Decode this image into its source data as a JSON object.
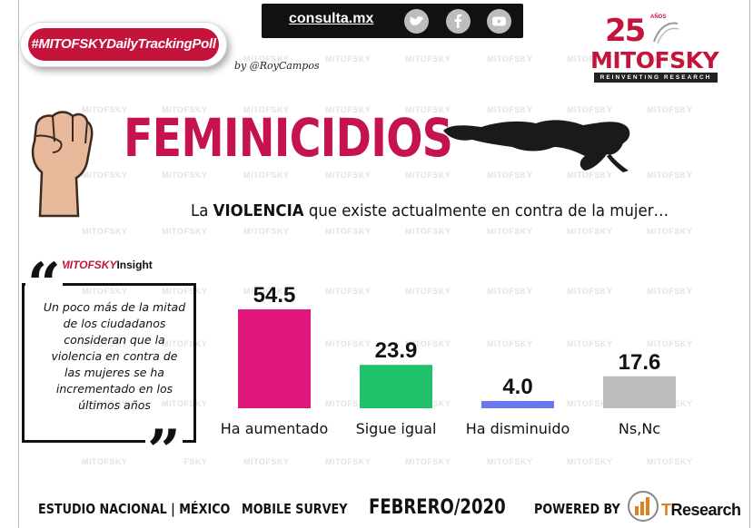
{
  "header": {
    "hashtag": "#MITOFSKYDailyTrackingPoll",
    "byline": "by @RoyCampos",
    "site": "consulta.mx",
    "social_icons": [
      "twitter-icon",
      "facebook-icon",
      "youtube-icon"
    ]
  },
  "logo": {
    "anniversary": "25",
    "anniversary_suffix": "AÑOS",
    "name": "MITOFSKY",
    "tagline": "REINVENTING RESEARCH"
  },
  "watermark": "MITOFSKY",
  "title": "FEMINICIDIOS",
  "question": {
    "pre": "La ",
    "emph": "VIOLENCIA",
    "post": " que existe actualmente en contra de la mujer…"
  },
  "insight": {
    "tag_prefix": "#",
    "tag_brand": "MITOFSKY",
    "tag_suffix": "Insight",
    "text": "Un poco más de la mitad de los ciudadanos consideran que la violencia en contra de las mujeres se ha incrementado en los últimos años"
  },
  "chart_data": {
    "type": "bar",
    "categories": [
      "Ha aumentado",
      "Sigue igual",
      "Ha disminuido",
      "Ns,Nc"
    ],
    "values": [
      54.5,
      23.9,
      4.0,
      17.6
    ],
    "value_labels": [
      "54.5",
      "23.9",
      "4.0",
      "17.6"
    ],
    "colors": [
      "#e0177a",
      "#1fc26a",
      "#6a78ee",
      "#bcbcbc"
    ],
    "title": "",
    "xlabel": "",
    "ylabel": "",
    "ylim": [
      0,
      60
    ],
    "grid": false,
    "legend": "none"
  },
  "footer": {
    "study": "ESTUDIO NACIONAL | MÉXICO",
    "survey": "MOBILE SURVEY",
    "date": "FEBRERO/2020",
    "powered": "POWERED BY",
    "partner_t": "T",
    "partner_rest": "Research"
  }
}
